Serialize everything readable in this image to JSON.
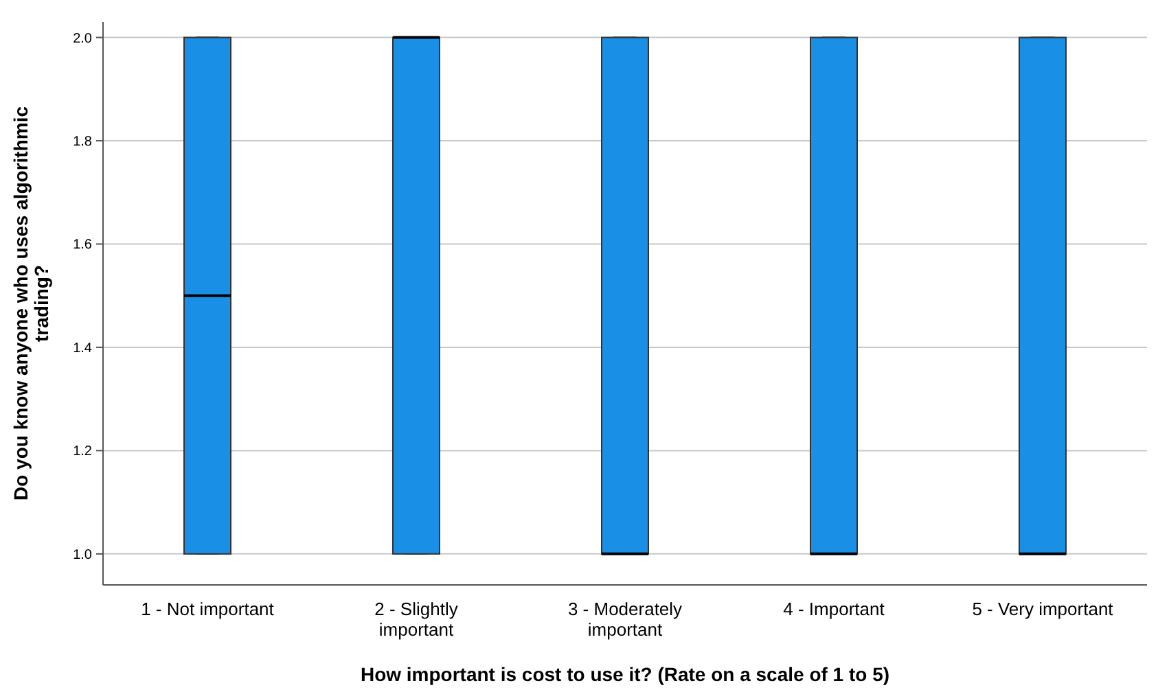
{
  "chart_data": {
    "type": "box",
    "xlabel": "How important is cost to use it? (Rate on a scale of 1 to 5)",
    "ylabel": "Do you know anyone who uses algorithmic trading?",
    "categories": [
      "1 - Not important",
      "2 - Slightly important",
      "3 - Moderately important",
      "4 - Important",
      "5 - Very important"
    ],
    "color": "#1a8fe6",
    "boxes": [
      {
        "low": 1,
        "q1": 1,
        "median": 1.5,
        "q3": 2,
        "high": 2
      },
      {
        "low": 1,
        "q1": 1,
        "median": 2,
        "q3": 2,
        "high": 2
      },
      {
        "low": 1,
        "q1": 1,
        "median": 1,
        "q3": 2,
        "high": 2
      },
      {
        "low": 1,
        "q1": 1,
        "median": 1,
        "q3": 2,
        "high": 2
      },
      {
        "low": 1,
        "q1": 1,
        "median": 1,
        "q3": 2,
        "high": 2
      }
    ],
    "ylim": [
      0.94,
      2.03
    ],
    "yticks": [
      {
        "value": 1,
        "label": "1.0"
      },
      {
        "value": 1.2,
        "label": "1.2"
      },
      {
        "value": 1.4,
        "label": "1.4"
      },
      {
        "value": 1.6,
        "label": "1.6"
      },
      {
        "value": 1.8,
        "label": "1.8"
      },
      {
        "value": 2,
        "label": "2.0"
      }
    ],
    "grid": "y"
  }
}
